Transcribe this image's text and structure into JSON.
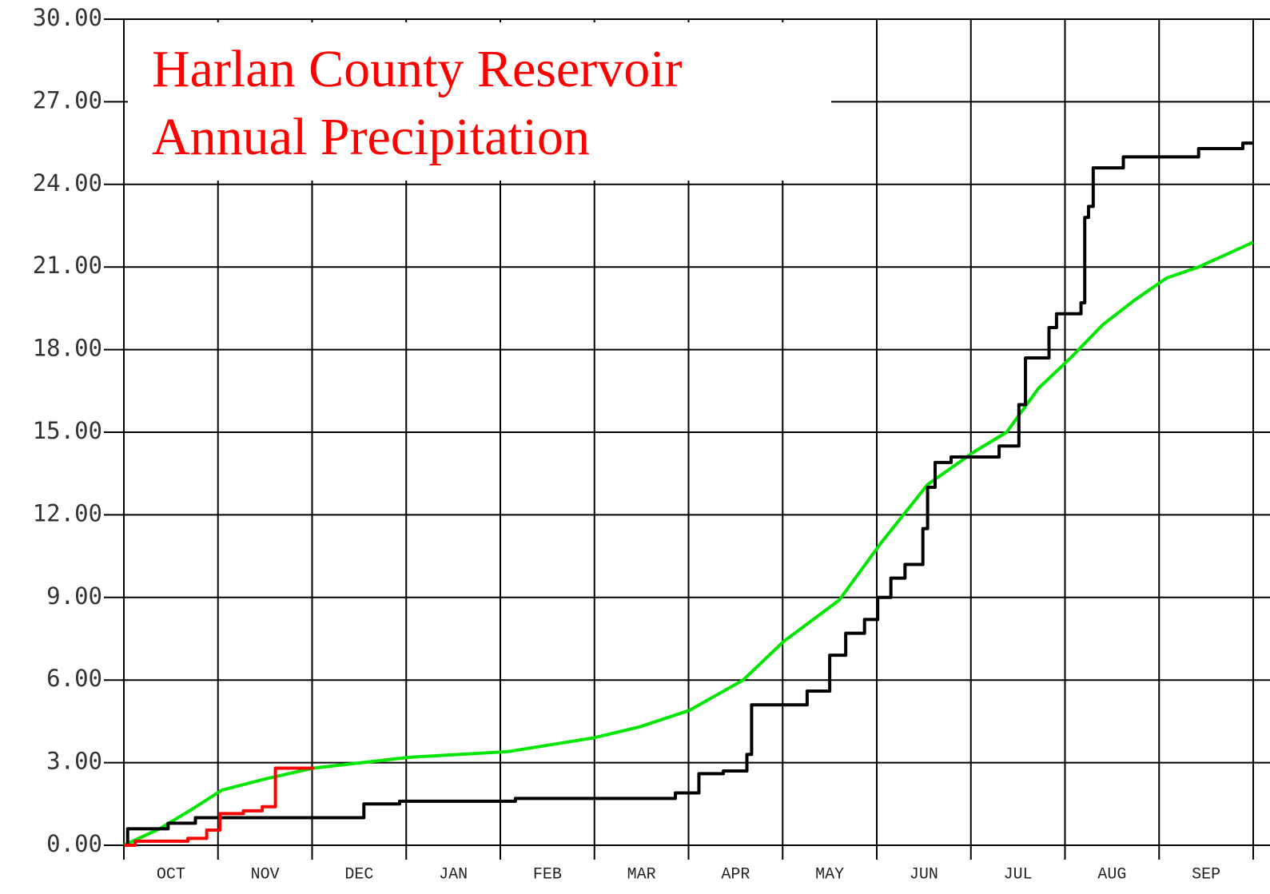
{
  "chart_data": {
    "type": "line",
    "title": [
      "Harlan County Reservoir",
      "Annual Precipitation"
    ],
    "categories": [
      "OCT",
      "NOV",
      "DEC",
      "JAN",
      "FEB",
      "MAR",
      "APR",
      "MAY",
      "JUN",
      "JUL",
      "AUG",
      "SEP"
    ],
    "xlim": [
      0,
      12
    ],
    "ylim": [
      0,
      30
    ],
    "yticks": [
      {
        "value": 0,
        "label": "0.00"
      },
      {
        "value": 3,
        "label": "3.00"
      },
      {
        "value": 6,
        "label": "6.00"
      },
      {
        "value": 9,
        "label": "9.00"
      },
      {
        "value": 12,
        "label": "12.00"
      },
      {
        "value": 15,
        "label": "15.00"
      },
      {
        "value": 18,
        "label": "18.00"
      },
      {
        "value": 21,
        "label": "21.00"
      },
      {
        "value": 24,
        "label": "24.00"
      },
      {
        "value": 27,
        "label": "27.00"
      },
      {
        "value": 30,
        "label": "30.00"
      }
    ],
    "grid": true,
    "series": [
      {
        "color": "#00e600",
        "step": false,
        "x": [
          0,
          0.38,
          0.72,
          1.04,
          1.49,
          2.01,
          3.05,
          4.08,
          4.99,
          5.48,
          6.01,
          6.58,
          7.01,
          7.6,
          8.05,
          8.54,
          9.04,
          9.38,
          9.72,
          10.06,
          10.4,
          10.74,
          11.08,
          11.42,
          12
        ],
        "values": [
          0,
          0.6,
          1.3,
          2.0,
          2.4,
          2.8,
          3.2,
          3.4,
          3.9,
          4.3,
          4.9,
          6.0,
          7.4,
          8.9,
          11.0,
          13.1,
          14.3,
          15.0,
          16.6,
          17.7,
          18.9,
          19.8,
          20.6,
          21.0,
          21.9
        ]
      },
      {
        "color": "#000000",
        "step": true,
        "x": [
          0,
          0.04,
          0.47,
          0.76,
          2.55,
          2.93,
          4.16,
          5.86,
          6.11,
          6.37,
          6.62,
          6.67,
          7.26,
          7.5,
          7.67,
          7.87,
          8.01,
          8.15,
          8.3,
          8.49,
          8.54,
          8.62,
          8.79,
          9.3,
          9.51,
          9.58,
          9.83,
          9.91,
          10.17,
          10.21,
          10.25,
          10.3,
          10.62,
          11.42,
          11.89,
          12
        ],
        "values": [
          0,
          0.6,
          0.8,
          1.0,
          1.5,
          1.6,
          1.7,
          1.9,
          2.6,
          2.7,
          3.3,
          5.1,
          5.6,
          6.9,
          7.7,
          8.2,
          9.0,
          9.7,
          10.2,
          11.5,
          13.0,
          13.9,
          14.1,
          14.5,
          16.0,
          17.7,
          18.8,
          19.3,
          19.7,
          22.8,
          23.2,
          24.6,
          25.0,
          25.3,
          25.5,
          25.5
        ]
      },
      {
        "color": "#ff0000",
        "step": true,
        "x": [
          0,
          0.12,
          0.68,
          0.88,
          1.02,
          1.27,
          1.47,
          1.61,
          2.02
        ],
        "values": [
          0,
          0.15,
          0.25,
          0.55,
          1.15,
          1.25,
          1.4,
          2.8,
          2.8
        ]
      }
    ]
  }
}
